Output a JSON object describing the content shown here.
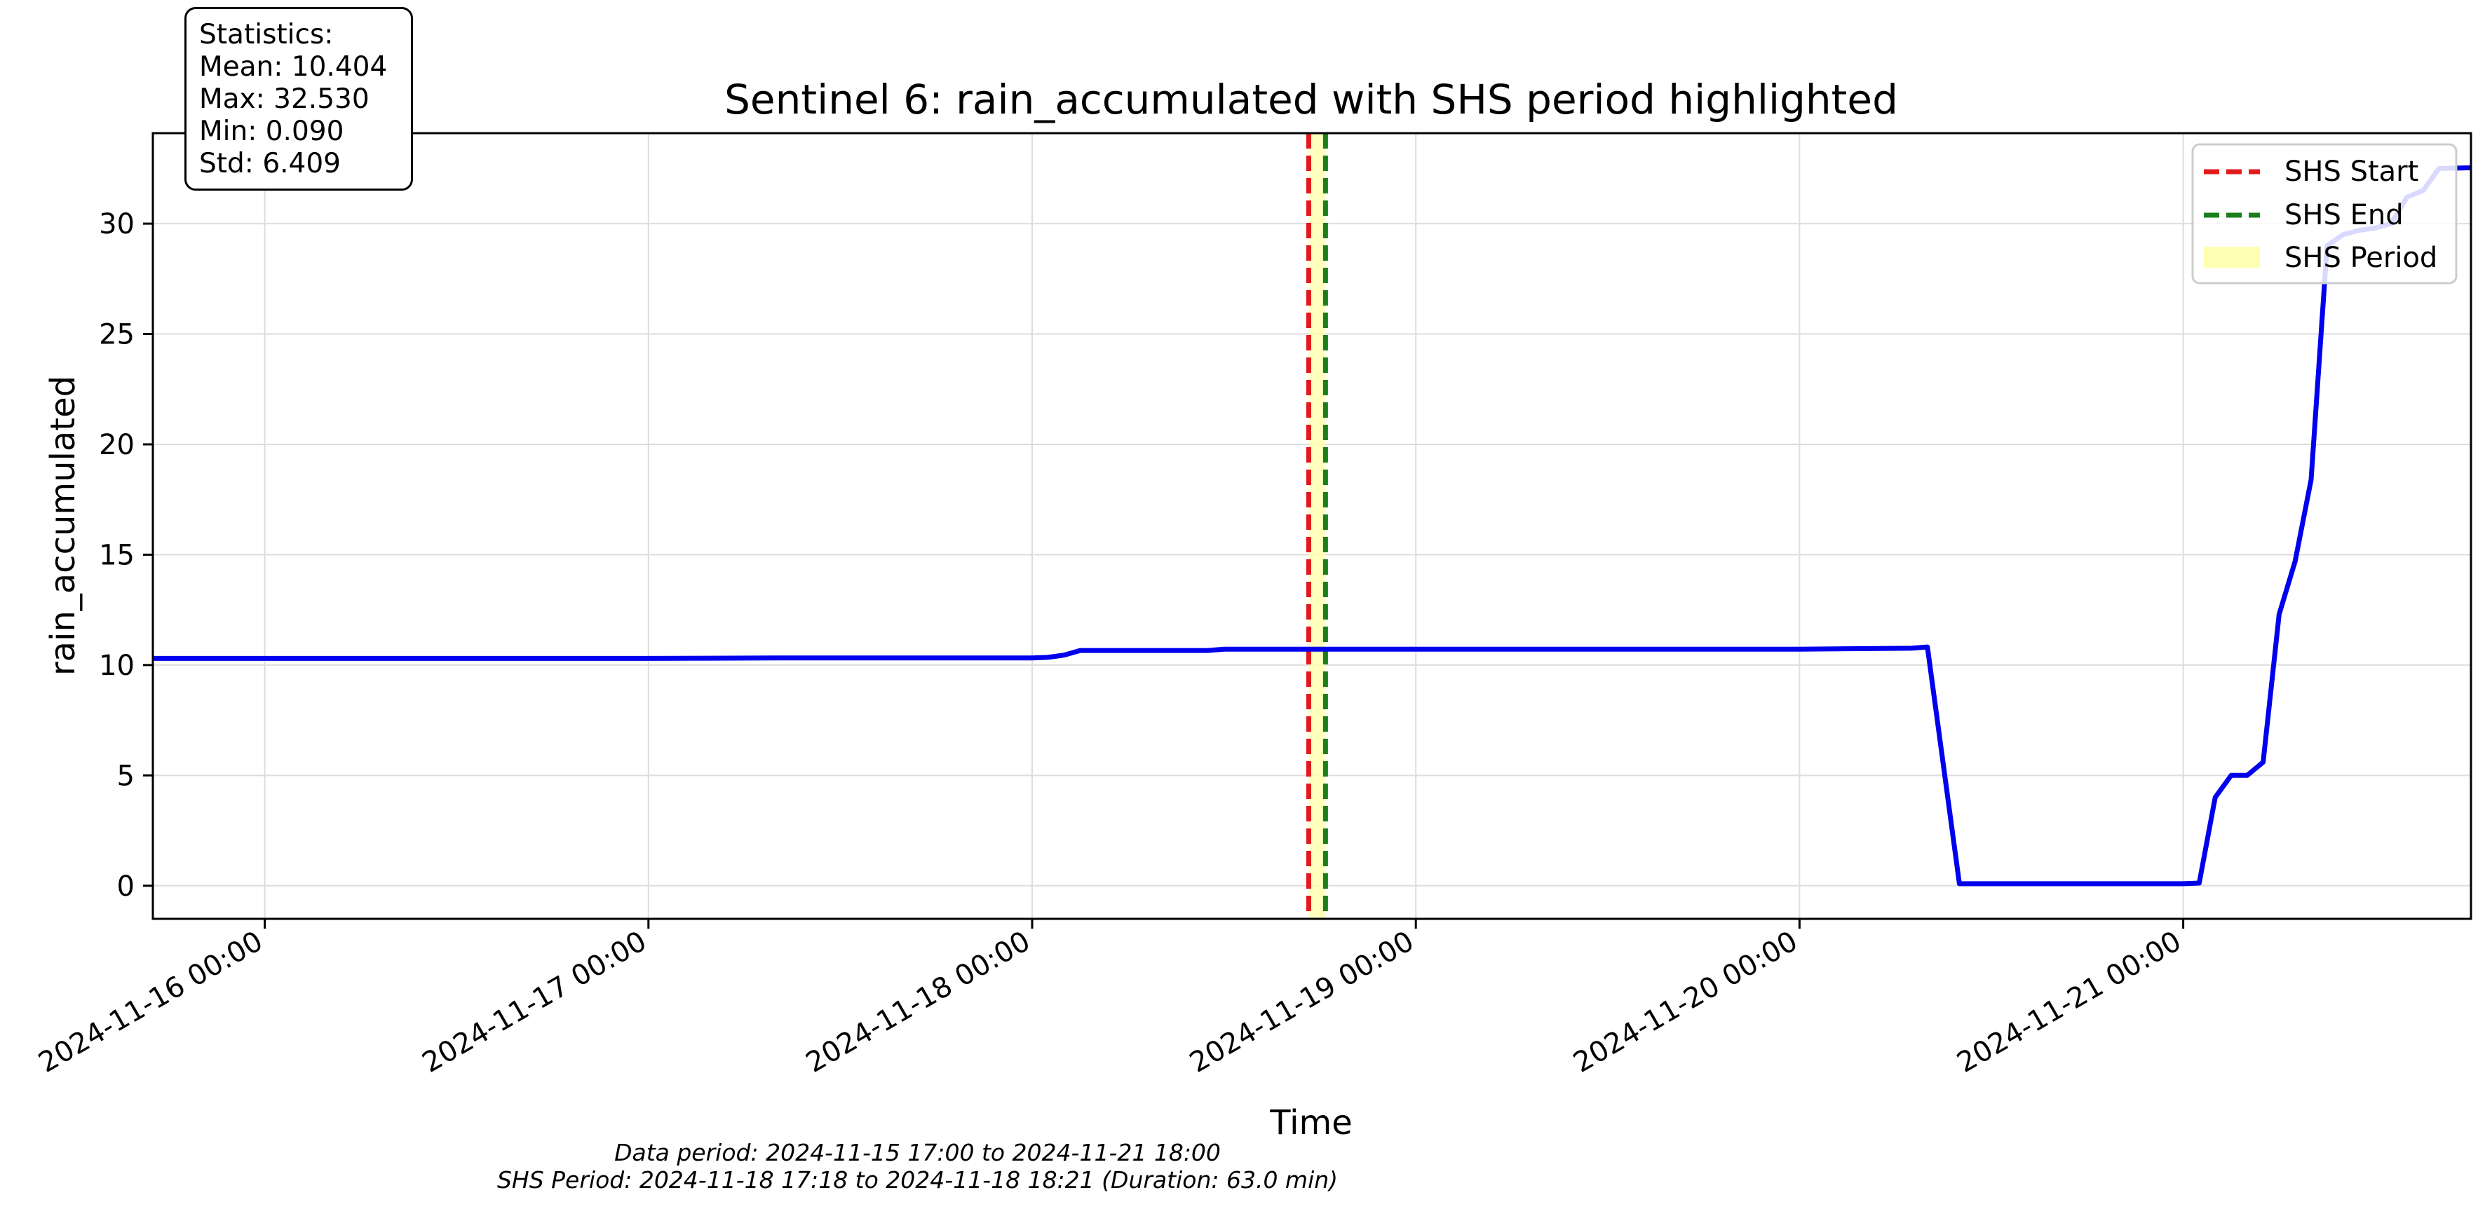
{
  "figure": {
    "stats": {
      "heading": "Statistics:",
      "mean": "Mean: 10.404",
      "max": "Max: 32.530",
      "min": "Min: 0.090",
      "std": "Std: 6.409"
    },
    "footnote_line1": "Data period: 2024-11-15 17:00 to 2024-11-21 18:00",
    "footnote_line2": "SHS Period: 2024-11-18 17:18 to 2024-11-18 18:21 (Duration: 63.0 min)"
  },
  "chart_data": {
    "type": "line",
    "title": "Sentinel 6: rain_accumulated with SHS period highlighted",
    "xlabel": "Time",
    "ylabel": "rain_accumulated",
    "x_tick_labels": [
      "2024-11-16 00:00",
      "2024-11-17 00:00",
      "2024-11-18 00:00",
      "2024-11-19 00:00",
      "2024-11-20 00:00",
      "2024-11-21 00:00"
    ],
    "y_ticks": [
      0,
      5,
      10,
      15,
      20,
      25,
      30
    ],
    "xlim": [
      "2024-11-15 17:00",
      "2024-11-21 18:00"
    ],
    "ylim": [
      -1.5,
      34.1
    ],
    "grid": true,
    "legend_position": "top-right",
    "colors": {
      "series": "#0000ee",
      "shs_start": "#e31a1c",
      "shs_end": "#1a7f1a",
      "shs_span": "#ffffb3"
    },
    "legend": [
      {
        "label": "SHS Start",
        "style": "dashed",
        "color": "#e31a1c"
      },
      {
        "label": "SHS End",
        "style": "dashed",
        "color": "#1a7f1a"
      },
      {
        "label": "SHS Period",
        "style": "patch",
        "color": "#ffffb3"
      }
    ],
    "shs_start": "2024-11-18 17:18",
    "shs_end": "2024-11-18 18:21",
    "series": [
      {
        "points": [
          [
            "2024-11-15 17:00",
            10.3
          ],
          [
            "2024-11-17 00:00",
            10.3
          ],
          [
            "2024-11-17 08:00",
            10.32
          ],
          [
            "2024-11-18 00:00",
            10.32
          ],
          [
            "2024-11-18 01:00",
            10.35
          ],
          [
            "2024-11-18 02:00",
            10.45
          ],
          [
            "2024-11-18 03:00",
            10.66
          ],
          [
            "2024-11-18 11:00",
            10.66
          ],
          [
            "2024-11-18 12:00",
            10.72
          ],
          [
            "2024-11-19 00:00",
            10.72
          ],
          [
            "2024-11-20 00:00",
            10.72
          ],
          [
            "2024-11-20 03:00",
            10.74
          ],
          [
            "2024-11-20 07:00",
            10.76
          ],
          [
            "2024-11-20 08:00",
            10.82
          ],
          [
            "2024-11-20 10:00",
            0.09
          ],
          [
            "2024-11-21 00:00",
            0.09
          ],
          [
            "2024-11-21 01:00",
            0.12
          ],
          [
            "2024-11-21 02:00",
            4.0
          ],
          [
            "2024-11-21 03:00",
            5.0
          ],
          [
            "2024-11-21 04:00",
            5.0
          ],
          [
            "2024-11-21 05:00",
            5.6
          ],
          [
            "2024-11-21 06:00",
            12.3
          ],
          [
            "2024-11-21 07:00",
            14.7
          ],
          [
            "2024-11-21 08:00",
            18.4
          ],
          [
            "2024-11-21 09:00",
            29.0
          ],
          [
            "2024-11-21 10:00",
            29.5
          ],
          [
            "2024-11-21 11:00",
            29.7
          ],
          [
            "2024-11-21 12:00",
            29.8
          ],
          [
            "2024-11-21 13:00",
            30.0
          ],
          [
            "2024-11-21 14:00",
            31.2
          ],
          [
            "2024-11-21 15:00",
            31.5
          ],
          [
            "2024-11-21 16:00",
            32.5
          ],
          [
            "2024-11-21 18:00",
            32.53
          ]
        ]
      }
    ]
  }
}
